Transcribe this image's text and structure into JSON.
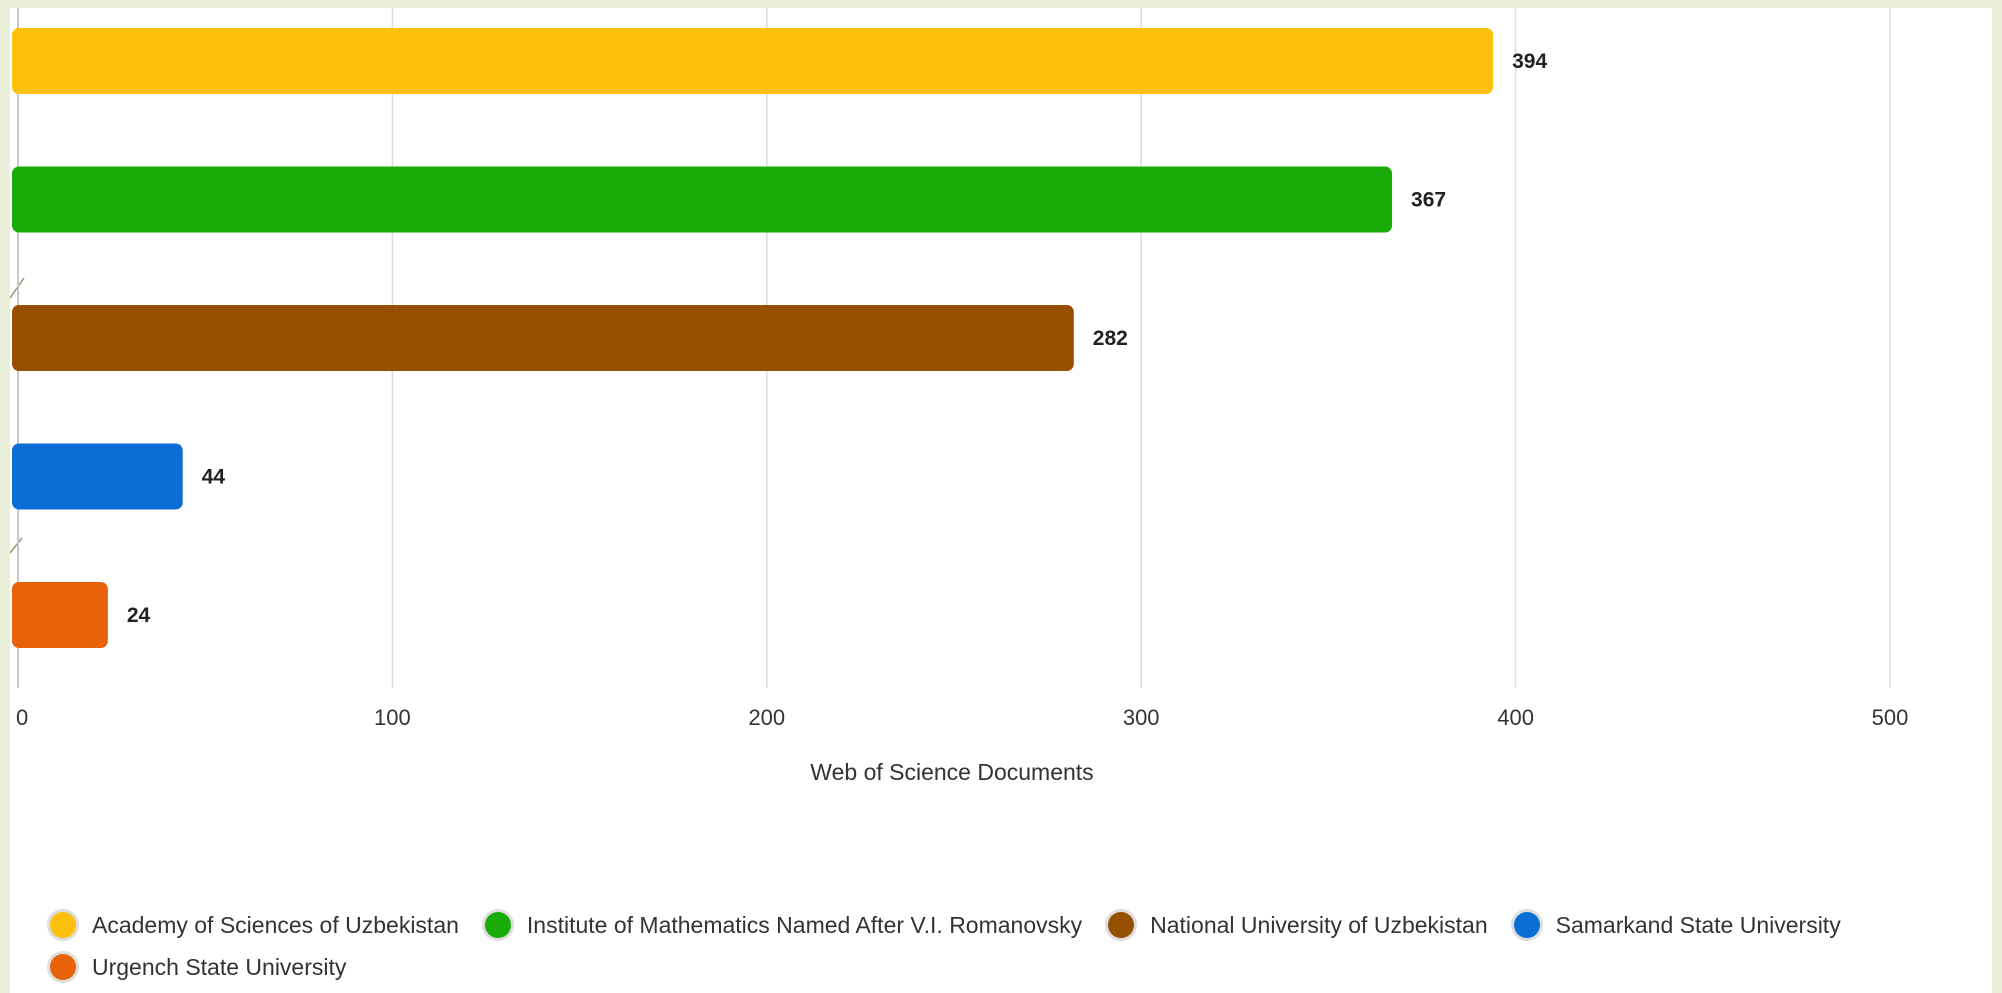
{
  "chart_data": {
    "type": "bar",
    "orientation": "horizontal",
    "categories": [
      "Academy of Sciences of Uzbekistan",
      "Institute of Mathematics Named After V.I. Romanovsky",
      "National University of Uzbekistan",
      "Samarkand State University",
      "Urgench State University"
    ],
    "values": [
      394,
      367,
      282,
      44,
      24
    ],
    "colors": [
      "#fcc10e",
      "#19ab08",
      "#974f00",
      "#0a6ed5",
      "#e8620a"
    ],
    "xlabel": "Web of Science Documents",
    "ylabel": "",
    "xlim": [
      0,
      500
    ],
    "xticks": [
      0,
      100,
      200,
      300,
      400,
      500
    ],
    "data_labels": true,
    "grid": "vertical",
    "legend_position": "bottom"
  }
}
